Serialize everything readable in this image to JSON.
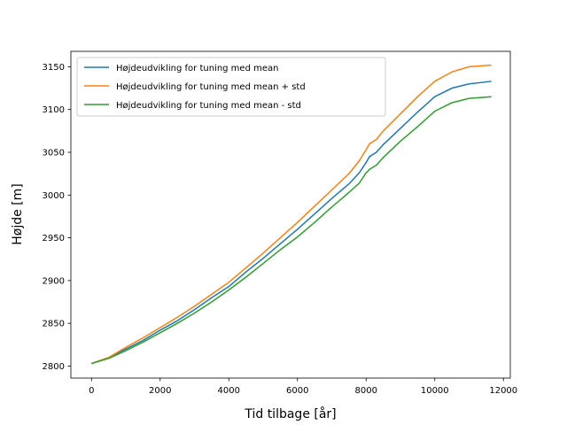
{
  "chart_data": {
    "type": "line",
    "title": "",
    "xlabel": "Tid tilbage [år]",
    "ylabel": "Højde [m]",
    "xlim": [
      -600,
      12200
    ],
    "ylim": [
      2786,
      3168
    ],
    "xticks": [
      0,
      2000,
      4000,
      6000,
      8000,
      10000,
      12000
    ],
    "yticks": [
      2800,
      2850,
      2900,
      2950,
      3000,
      3050,
      3100,
      3150
    ],
    "grid": false,
    "legend_position": "top-left",
    "series": [
      {
        "name": "Højdeudvikling for tuning med mean",
        "color": "#1f77b4",
        "points": [
          [
            0,
            2803
          ],
          [
            500,
            2810
          ],
          [
            1000,
            2820
          ],
          [
            1500,
            2830
          ],
          [
            2000,
            2842
          ],
          [
            2500,
            2853
          ],
          [
            3000,
            2866
          ],
          [
            3500,
            2880
          ],
          [
            4000,
            2893
          ],
          [
            4500,
            2910
          ],
          [
            5000,
            2926
          ],
          [
            5500,
            2943
          ],
          [
            6000,
            2960
          ],
          [
            6500,
            2978
          ],
          [
            7000,
            2996
          ],
          [
            7500,
            3013
          ],
          [
            7800,
            3026
          ],
          [
            8000,
            3038
          ],
          [
            8100,
            3045
          ],
          [
            8300,
            3050
          ],
          [
            8500,
            3059
          ],
          [
            9000,
            3078
          ],
          [
            9500,
            3097
          ],
          [
            10000,
            3115
          ],
          [
            10500,
            3125
          ],
          [
            11000,
            3130
          ],
          [
            11650,
            3133
          ]
        ]
      },
      {
        "name": "Højdeudvikling for tuning med mean + std",
        "color": "#ff7f0e",
        "points": [
          [
            0,
            2803
          ],
          [
            500,
            2810
          ],
          [
            1000,
            2822
          ],
          [
            1500,
            2833
          ],
          [
            2000,
            2845
          ],
          [
            2500,
            2857
          ],
          [
            3000,
            2870
          ],
          [
            3500,
            2884
          ],
          [
            4000,
            2898
          ],
          [
            4500,
            2915
          ],
          [
            5000,
            2932
          ],
          [
            5500,
            2950
          ],
          [
            6000,
            2968
          ],
          [
            6500,
            2987
          ],
          [
            7000,
            3006
          ],
          [
            7500,
            3025
          ],
          [
            7800,
            3040
          ],
          [
            8000,
            3053
          ],
          [
            8100,
            3060
          ],
          [
            8300,
            3065
          ],
          [
            8500,
            3075
          ],
          [
            9000,
            3095
          ],
          [
            9500,
            3115
          ],
          [
            10000,
            3133
          ],
          [
            10500,
            3144
          ],
          [
            11000,
            3150
          ],
          [
            11650,
            3152
          ]
        ]
      },
      {
        "name": "Højdeudvikling for tuning med mean - std",
        "color": "#2ca02c",
        "points": [
          [
            0,
            2803
          ],
          [
            500,
            2809
          ],
          [
            1000,
            2818
          ],
          [
            1500,
            2828
          ],
          [
            2000,
            2839
          ],
          [
            2500,
            2850
          ],
          [
            3000,
            2862
          ],
          [
            3500,
            2875
          ],
          [
            4000,
            2889
          ],
          [
            4500,
            2904
          ],
          [
            5000,
            2920
          ],
          [
            5500,
            2936
          ],
          [
            6000,
            2951
          ],
          [
            6500,
            2968
          ],
          [
            7000,
            2986
          ],
          [
            7500,
            3003
          ],
          [
            7800,
            3014
          ],
          [
            8000,
            3026
          ],
          [
            8100,
            3030
          ],
          [
            8300,
            3035
          ],
          [
            8500,
            3044
          ],
          [
            9000,
            3063
          ],
          [
            9500,
            3080
          ],
          [
            10000,
            3098
          ],
          [
            10500,
            3108
          ],
          [
            11000,
            3113
          ],
          [
            11650,
            3115
          ]
        ]
      }
    ]
  }
}
